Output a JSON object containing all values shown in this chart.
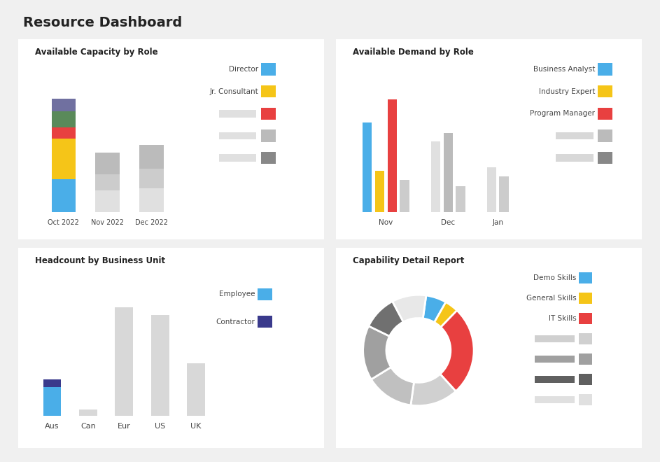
{
  "title": "Resource Dashboard",
  "bg_color": "#f0f0f0",
  "panel_color": "#ffffff",
  "panel_edge": "#dddddd",
  "cap_title": "Available Capacity by Role",
  "cap_months": [
    "Oct 2022",
    "Nov 2022",
    "Dec 2022"
  ],
  "cap_oct": [
    30,
    38,
    10,
    15,
    12
  ],
  "cap_colors": [
    "#4aaee8",
    "#f5c518",
    "#e84040",
    "#5a8a5a",
    "#7070a0"
  ],
  "cap_nov_segs": [
    20,
    15,
    20
  ],
  "cap_nov_colors": [
    "#e0e0e0",
    "#cccccc",
    "#bbbbbb"
  ],
  "cap_dec_segs": [
    22,
    18,
    22
  ],
  "cap_dec_colors": [
    "#e0e0e0",
    "#cccccc",
    "#bbbbbb"
  ],
  "cap_legend_named": [
    [
      "Director",
      "#4aaee8"
    ],
    [
      "Jr. Consultant",
      "#f5c518"
    ]
  ],
  "cap_legend_unnamed": [
    [
      "#e84040"
    ],
    [
      "#bbbbbb"
    ],
    [
      "#888888"
    ]
  ],
  "dem_title": "Available Demand by Role",
  "dem_nov_bars": [
    {
      "val": 70,
      "color": "#4aaee8"
    },
    {
      "val": 32,
      "color": "#f5c518"
    },
    {
      "val": 88,
      "color": "#e84040"
    },
    {
      "val": 25,
      "color": "#cccccc"
    }
  ],
  "dem_dec_bars": [
    {
      "val": 55,
      "color": "#e0e0e0"
    },
    {
      "val": 62,
      "color": "#bbbbbb"
    },
    {
      "val": 20,
      "color": "#cccccc"
    }
  ],
  "dem_jan_bars": [
    {
      "val": 35,
      "color": "#dddddd"
    },
    {
      "val": 28,
      "color": "#cccccc"
    }
  ],
  "dem_legend_named": [
    [
      "Business Analyst",
      "#4aaee8"
    ],
    [
      "Industry Expert",
      "#f5c518"
    ],
    [
      "Program Manager",
      "#e84040"
    ]
  ],
  "dem_legend_unnamed": [
    [
      "#bbbbbb"
    ],
    [
      "#888888"
    ]
  ],
  "hc_title": "Headcount by Business Unit",
  "hc_cats": [
    "Aus",
    "Can",
    "Eur",
    "US",
    "UK"
  ],
  "hc_grey": [
    0,
    4,
    68,
    63,
    33
  ],
  "hc_blue": [
    18,
    0,
    0,
    0,
    0
  ],
  "hc_dark": [
    5,
    0,
    0,
    0,
    0
  ],
  "hc_grey_color": "#d8d8d8",
  "hc_blue_color": "#4aaee8",
  "hc_dark_color": "#3a3a8c",
  "hc_legend": [
    [
      "Employee",
      "#4aaee8"
    ],
    [
      "Contractor",
      "#3a3a8c"
    ]
  ],
  "donut_title": "Capability Detail Report",
  "donut_vals": [
    6,
    4,
    26,
    14,
    14,
    16,
    10,
    10
  ],
  "donut_colors": [
    "#4aaee8",
    "#f5c518",
    "#e84040",
    "#d0d0d0",
    "#c0c0c0",
    "#a0a0a0",
    "#707070",
    "#e8e8e8"
  ],
  "donut_legend_named": [
    [
      "Demo Skills",
      "#4aaee8"
    ],
    [
      "General Skills",
      "#f5c518"
    ],
    [
      "IT Skills",
      "#e84040"
    ]
  ],
  "donut_legend_unnamed": [
    [
      "#d0d0d0"
    ],
    [
      "#a0a0a0"
    ],
    [
      "#606060"
    ],
    [
      "#e0e0e0"
    ]
  ]
}
